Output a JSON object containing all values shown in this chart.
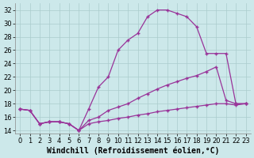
{
  "xlabel": "Windchill (Refroidissement éolien,°C)",
  "bg_color": "#cce8ea",
  "grid_color": "#aacccc",
  "line_color": "#993399",
  "xlim": [
    -0.5,
    23.5
  ],
  "ylim": [
    13.5,
    33.0
  ],
  "xticks": [
    0,
    1,
    2,
    3,
    4,
    5,
    6,
    7,
    8,
    9,
    10,
    11,
    12,
    13,
    14,
    15,
    16,
    17,
    18,
    19,
    20,
    21,
    22,
    23
  ],
  "yticks": [
    14,
    16,
    18,
    20,
    22,
    24,
    26,
    28,
    30,
    32
  ],
  "line1_x": [
    0,
    1,
    2,
    3,
    4,
    5,
    6,
    7,
    8,
    9,
    10,
    11,
    12,
    13,
    14,
    15,
    16,
    17,
    18,
    19,
    20,
    21,
    22,
    23
  ],
  "line1_y": [
    17.2,
    17.0,
    15.0,
    15.3,
    15.3,
    15.0,
    14.0,
    17.2,
    20.5,
    22.0,
    26.0,
    27.5,
    28.5,
    31.0,
    32.0,
    32.0,
    31.5,
    31.0,
    29.5,
    25.5,
    25.5,
    25.5,
    18.0,
    18.0
  ],
  "line2_x": [
    0,
    1,
    2,
    3,
    4,
    5,
    6,
    7,
    8,
    9,
    10,
    11,
    12,
    13,
    14,
    15,
    16,
    17,
    18,
    19,
    20,
    21,
    22,
    23
  ],
  "line2_y": [
    17.2,
    17.0,
    15.0,
    15.3,
    15.3,
    15.0,
    14.0,
    15.5,
    16.0,
    17.0,
    17.5,
    18.0,
    18.8,
    19.5,
    20.2,
    20.8,
    21.3,
    21.8,
    22.2,
    22.8,
    23.5,
    18.5,
    18.0,
    18.0
  ],
  "line3_x": [
    0,
    1,
    2,
    3,
    4,
    5,
    6,
    7,
    8,
    9,
    10,
    11,
    12,
    13,
    14,
    15,
    16,
    17,
    18,
    19,
    20,
    21,
    22,
    23
  ],
  "line3_y": [
    17.2,
    17.0,
    15.0,
    15.3,
    15.3,
    15.0,
    14.0,
    15.0,
    15.3,
    15.5,
    15.8,
    16.0,
    16.3,
    16.5,
    16.8,
    17.0,
    17.2,
    17.4,
    17.6,
    17.8,
    18.0,
    18.0,
    17.8,
    18.0
  ],
  "marker": "+",
  "markersize": 3,
  "linewidth": 0.9,
  "font_size_label": 7,
  "font_size_tick": 6
}
